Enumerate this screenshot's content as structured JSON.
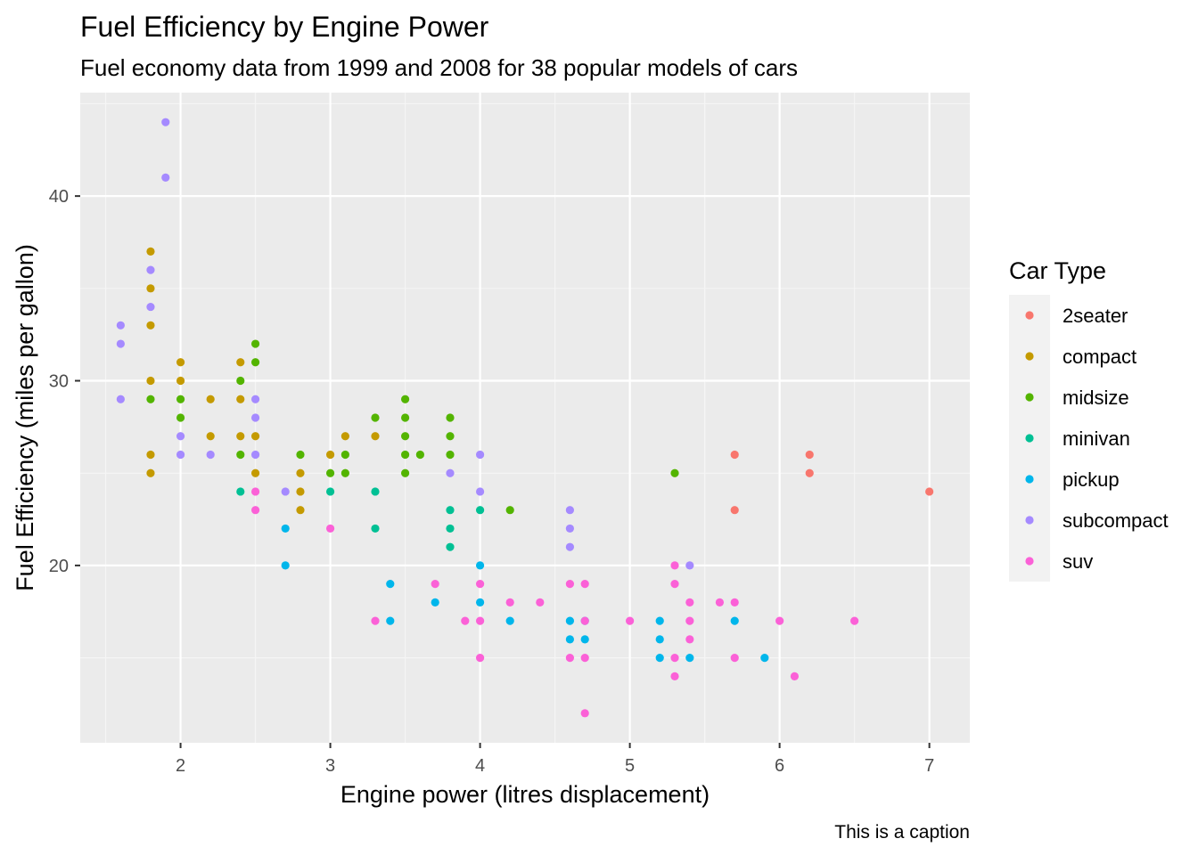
{
  "chart_data": {
    "type": "scatter",
    "title": "Fuel Efficiency by Engine Power",
    "subtitle": "Fuel economy data from 1999 and 2008 for 38 popular models of cars",
    "xlabel": "Engine power (litres displacement)",
    "ylabel": "Fuel Efficiency (miles per gallon)",
    "caption": "This is a caption",
    "xlim": [
      1.33,
      7.27
    ],
    "ylim": [
      10.4,
      45.6
    ],
    "x_ticks": [
      2,
      3,
      4,
      5,
      6,
      7
    ],
    "y_ticks": [
      20,
      30,
      40
    ],
    "grid": true,
    "legend": {
      "title": "Car Type",
      "position": "right"
    },
    "series": [
      {
        "name": "2seater",
        "color": "#F8766D",
        "points": [
          [
            5.7,
            26
          ],
          [
            5.7,
            23
          ],
          [
            6.2,
            26
          ],
          [
            6.2,
            25
          ],
          [
            7.0,
            24
          ]
        ]
      },
      {
        "name": "compact",
        "color": "#C49A00",
        "points": [
          [
            1.8,
            37
          ],
          [
            1.8,
            35
          ],
          [
            1.8,
            33
          ],
          [
            1.8,
            30
          ],
          [
            1.8,
            26
          ],
          [
            1.8,
            25
          ],
          [
            2.0,
            31
          ],
          [
            2.0,
            30
          ],
          [
            2.2,
            29
          ],
          [
            2.2,
            27
          ],
          [
            2.4,
            31
          ],
          [
            2.4,
            29
          ],
          [
            2.4,
            27
          ],
          [
            2.5,
            27
          ],
          [
            2.5,
            25
          ],
          [
            2.8,
            25
          ],
          [
            2.8,
            24
          ],
          [
            2.8,
            23
          ],
          [
            3.0,
            26
          ],
          [
            3.1,
            27
          ],
          [
            3.3,
            27
          ]
        ]
      },
      {
        "name": "midsize",
        "color": "#53B400",
        "points": [
          [
            1.8,
            29
          ],
          [
            2.0,
            29
          ],
          [
            2.0,
            28
          ],
          [
            2.4,
            30
          ],
          [
            2.4,
            26
          ],
          [
            2.5,
            32
          ],
          [
            2.5,
            31
          ],
          [
            2.8,
            26
          ],
          [
            3.0,
            25
          ],
          [
            3.1,
            26
          ],
          [
            3.1,
            25
          ],
          [
            3.3,
            28
          ],
          [
            3.5,
            29
          ],
          [
            3.5,
            28
          ],
          [
            3.5,
            27
          ],
          [
            3.5,
            26
          ],
          [
            3.5,
            25
          ],
          [
            3.6,
            26
          ],
          [
            3.8,
            28
          ],
          [
            3.8,
            27
          ],
          [
            3.8,
            26
          ],
          [
            4.2,
            23
          ],
          [
            5.3,
            25
          ]
        ]
      },
      {
        "name": "minivan",
        "color": "#00C094",
        "points": [
          [
            2.4,
            24
          ],
          [
            3.0,
            24
          ],
          [
            3.3,
            24
          ],
          [
            3.3,
            22
          ],
          [
            3.8,
            23
          ],
          [
            3.8,
            22
          ],
          [
            3.8,
            21
          ],
          [
            4.0,
            23
          ]
        ]
      },
      {
        "name": "pickup",
        "color": "#00B6EB",
        "points": [
          [
            2.7,
            22
          ],
          [
            2.7,
            20
          ],
          [
            3.4,
            19
          ],
          [
            3.4,
            17
          ],
          [
            3.7,
            18
          ],
          [
            4.0,
            20
          ],
          [
            4.0,
            18
          ],
          [
            4.2,
            17
          ],
          [
            4.6,
            17
          ],
          [
            4.6,
            16
          ],
          [
            4.7,
            17
          ],
          [
            4.7,
            16
          ],
          [
            5.2,
            17
          ],
          [
            5.2,
            16
          ],
          [
            5.2,
            15
          ],
          [
            5.4,
            15
          ],
          [
            5.7,
            17
          ],
          [
            5.9,
            15
          ]
        ]
      },
      {
        "name": "subcompact",
        "color": "#A58AFF",
        "points": [
          [
            1.6,
            33
          ],
          [
            1.6,
            32
          ],
          [
            1.6,
            29
          ],
          [
            1.8,
            36
          ],
          [
            1.8,
            34
          ],
          [
            1.9,
            44
          ],
          [
            1.9,
            41
          ],
          [
            2.0,
            27
          ],
          [
            2.0,
            26
          ],
          [
            2.2,
            26
          ],
          [
            2.5,
            29
          ],
          [
            2.5,
            28
          ],
          [
            2.5,
            26
          ],
          [
            2.7,
            24
          ],
          [
            3.8,
            25
          ],
          [
            4.0,
            26
          ],
          [
            4.0,
            24
          ],
          [
            4.6,
            23
          ],
          [
            4.6,
            22
          ],
          [
            4.6,
            21
          ],
          [
            5.4,
            20
          ]
        ]
      },
      {
        "name": "suv",
        "color": "#FB61D7",
        "points": [
          [
            2.5,
            24
          ],
          [
            2.5,
            23
          ],
          [
            3.0,
            22
          ],
          [
            3.3,
            17
          ],
          [
            3.7,
            19
          ],
          [
            3.9,
            17
          ],
          [
            4.0,
            19
          ],
          [
            4.0,
            17
          ],
          [
            4.0,
            15
          ],
          [
            4.2,
            18
          ],
          [
            4.4,
            18
          ],
          [
            4.6,
            19
          ],
          [
            4.6,
            15
          ],
          [
            4.7,
            19
          ],
          [
            4.7,
            17
          ],
          [
            4.7,
            15
          ],
          [
            4.7,
            12
          ],
          [
            5.0,
            17
          ],
          [
            5.3,
            20
          ],
          [
            5.3,
            19
          ],
          [
            5.3,
            15
          ],
          [
            5.3,
            14
          ],
          [
            5.4,
            18
          ],
          [
            5.4,
            17
          ],
          [
            5.4,
            16
          ],
          [
            5.6,
            18
          ],
          [
            5.7,
            18
          ],
          [
            5.7,
            15
          ],
          [
            6.0,
            17
          ],
          [
            6.1,
            14
          ],
          [
            6.5,
            17
          ]
        ]
      }
    ]
  }
}
